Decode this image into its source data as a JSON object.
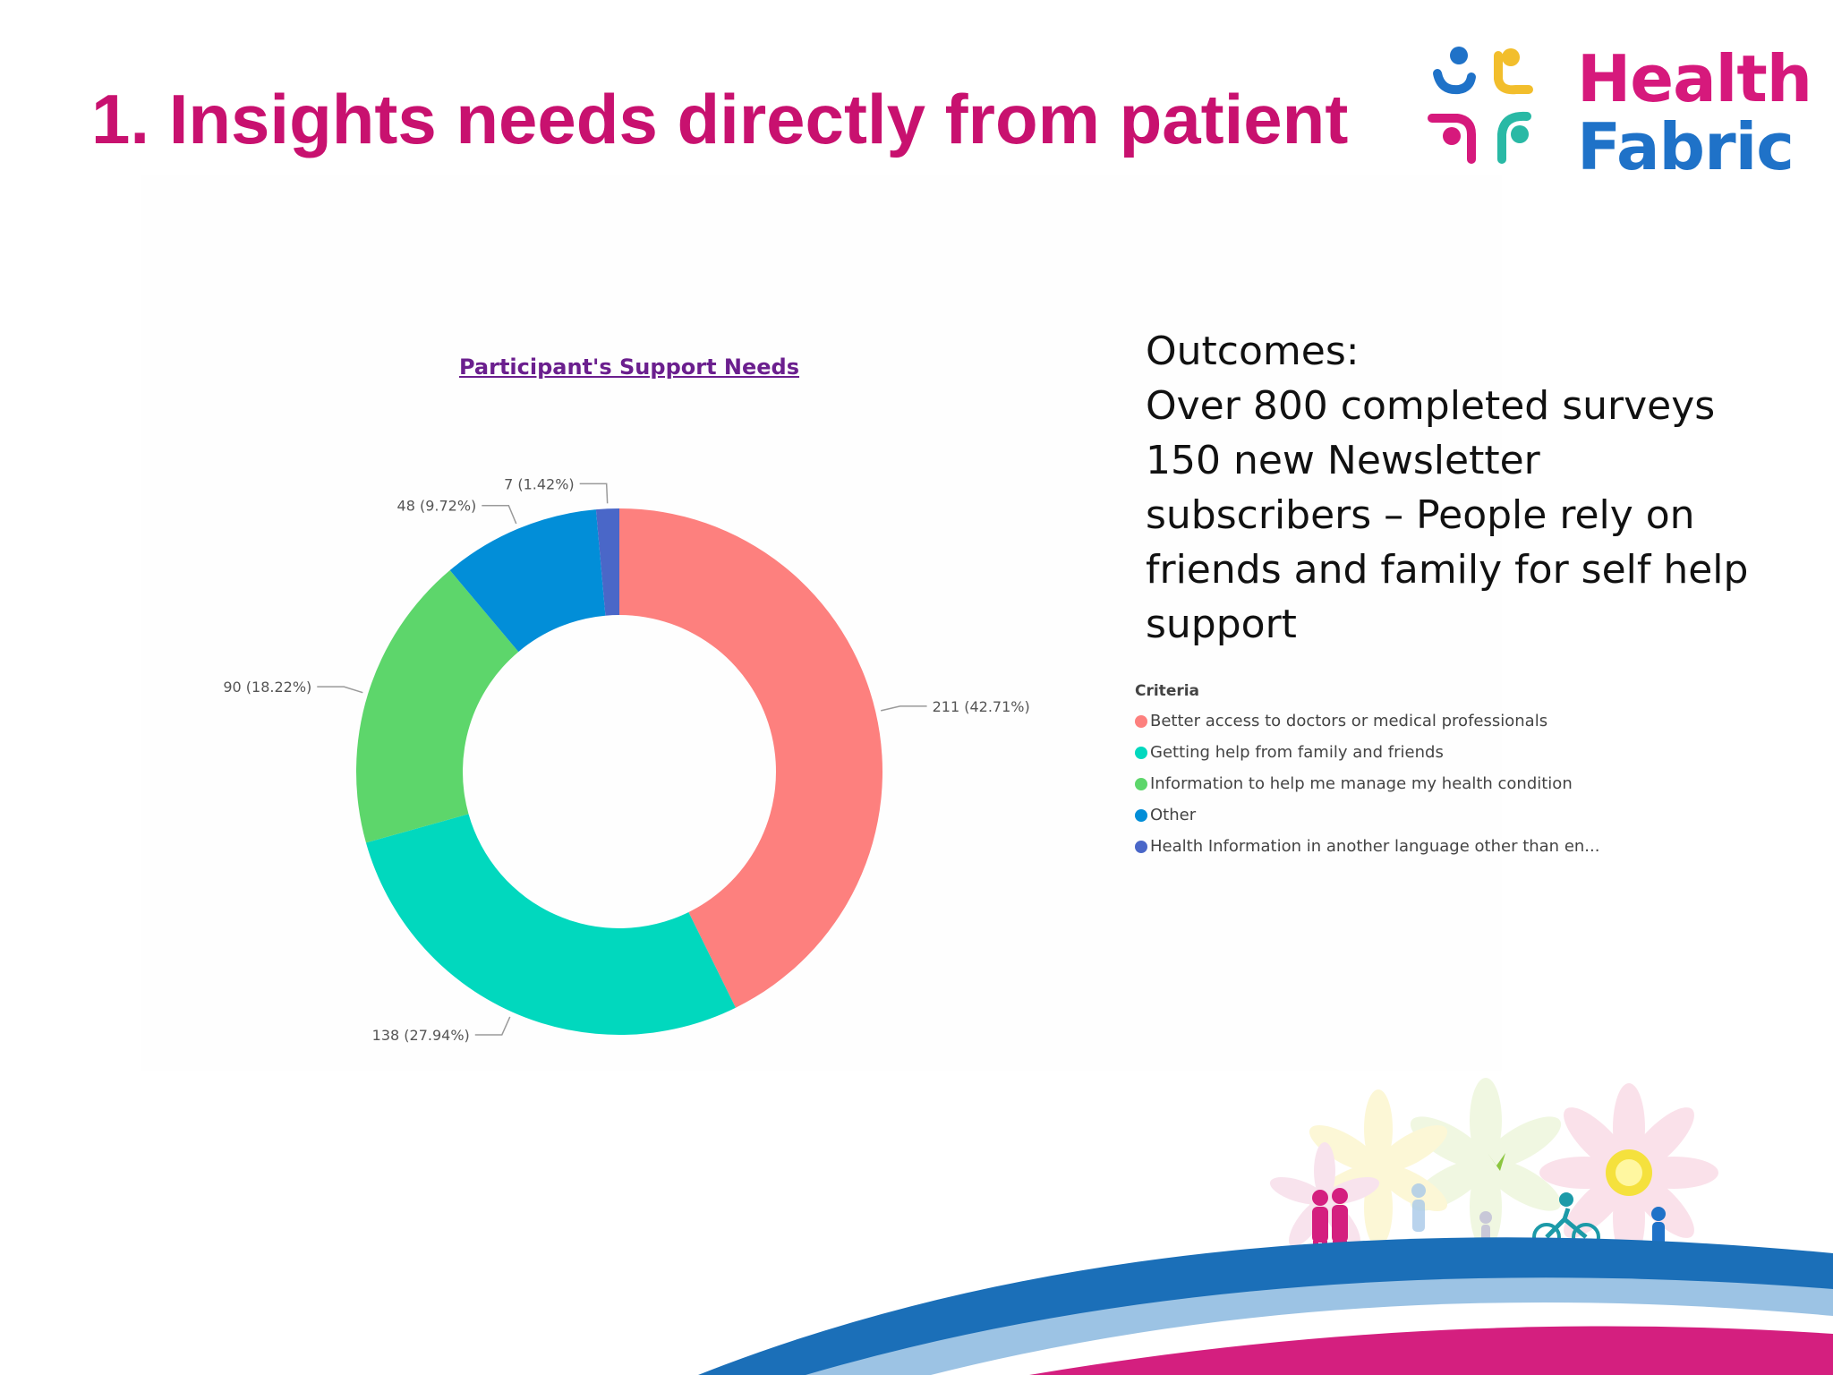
{
  "slide": {
    "title": "1. Insights needs directly from patient"
  },
  "logo": {
    "line1": "Health",
    "line2": "Fabric",
    "colors": {
      "pink": "#d6197c",
      "blue": "#1f72c8",
      "yellow": "#f2be2c",
      "teal": "#29b9a5"
    }
  },
  "outcomes": {
    "lines": [
      "Outcomes:",
      "Over 800 completed surveys",
      "150 new Newsletter",
      "subscribers – People rely on",
      "friends and family for self help",
      "support"
    ]
  },
  "legend": {
    "title": "Criteria"
  },
  "chart_data": {
    "type": "pie",
    "variant": "donut",
    "title": "Participant's Support Needs",
    "legend_title": "Criteria",
    "legend_position": "right",
    "slices": [
      {
        "label": "Better access to doctors or medical professionals",
        "value": 211,
        "percent": 42.71,
        "data_label": "211 (42.71%)",
        "color": "#fd807e"
      },
      {
        "label": "Getting help from family and friends",
        "value": 138,
        "percent": 27.94,
        "data_label": "138 (27.94%)",
        "color": "#01d8be"
      },
      {
        "label": "Information to help me manage my health condition",
        "value": 90,
        "percent": 18.22,
        "data_label": "90 (18.22%)",
        "color": "#5dd66b"
      },
      {
        "label": "Other",
        "value": 48,
        "percent": 9.72,
        "data_label": "48 (9.72%)",
        "color": "#028ed8"
      },
      {
        "label": "Health Information in another language other than en...",
        "value": 7,
        "percent": 1.42,
        "data_label": "7 (1.42%)",
        "color": "#4a67c8"
      }
    ]
  }
}
